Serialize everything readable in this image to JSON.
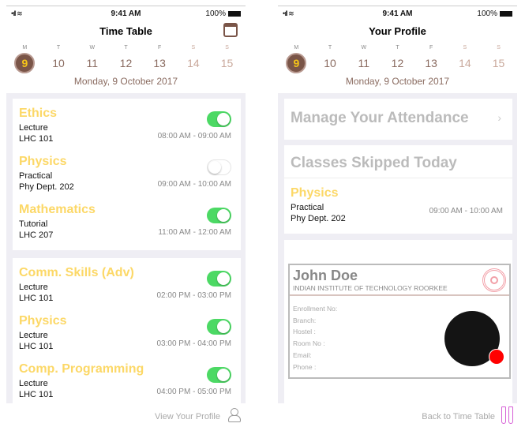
{
  "status": {
    "time": "9:41 AM",
    "battery": "100%",
    "signal": "•ıll ≋"
  },
  "week": {
    "letters": [
      "M",
      "T",
      "W",
      "T",
      "F",
      "S",
      "S"
    ],
    "numbers": [
      "9",
      "10",
      "11",
      "12",
      "13",
      "14",
      "15"
    ],
    "selected": 0,
    "date": "Monday, 9 October 2017"
  },
  "timetable": {
    "title": "Time Table",
    "groups": [
      [
        {
          "subject": "Ethics",
          "type": "Lecture",
          "room": "LHC 101",
          "time": "08:00 AM - 09:00 AM",
          "attending": true
        },
        {
          "subject": "Physics",
          "type": "Practical",
          "room": "Phy Dept. 202",
          "time": "09:00 AM - 10:00 AM",
          "attending": false
        },
        {
          "subject": "Mathematics",
          "type": "Tutorial",
          "room": "LHC 207",
          "time": "11:00 AM - 12:00 AM",
          "attending": true
        }
      ],
      [
        {
          "subject": "Comm. Skills (Adv)",
          "type": "Lecture",
          "room": "LHC 101",
          "time": "02:00 PM - 03:00 PM",
          "attending": true
        },
        {
          "subject": "Physics",
          "type": "Lecture",
          "room": "LHC 101",
          "time": "03:00 PM - 04:00 PM",
          "attending": true
        },
        {
          "subject": "Comp. Programming",
          "type": "Lecture",
          "room": "LHC 101",
          "time": "04:00 PM - 05:00 PM",
          "attending": true
        }
      ]
    ],
    "footer": "View Your Profile"
  },
  "profile": {
    "title": "Your Profile",
    "manage": "Manage Your Attendance",
    "skipped_title": "Classes Skipped Today",
    "skipped": {
      "subject": "Physics",
      "type": "Practical",
      "room": "Phy Dept. 202",
      "time": "09:00 AM - 10:00 AM"
    },
    "id": {
      "name": "John Doe",
      "institute": "INDIAN INSTITUTE OF TECHNOLOGY ROORKEE",
      "fields": [
        "Enrollment No:",
        "Branch:",
        "Hostel :",
        "Room No :",
        "Email:",
        "Phone :"
      ]
    },
    "footer": "Back to Time Table"
  },
  "colors": {
    "accent": "#7a5548",
    "subject": "#fcd867",
    "toggle_on": "#4cd964",
    "status_dot": "#ff0000"
  }
}
